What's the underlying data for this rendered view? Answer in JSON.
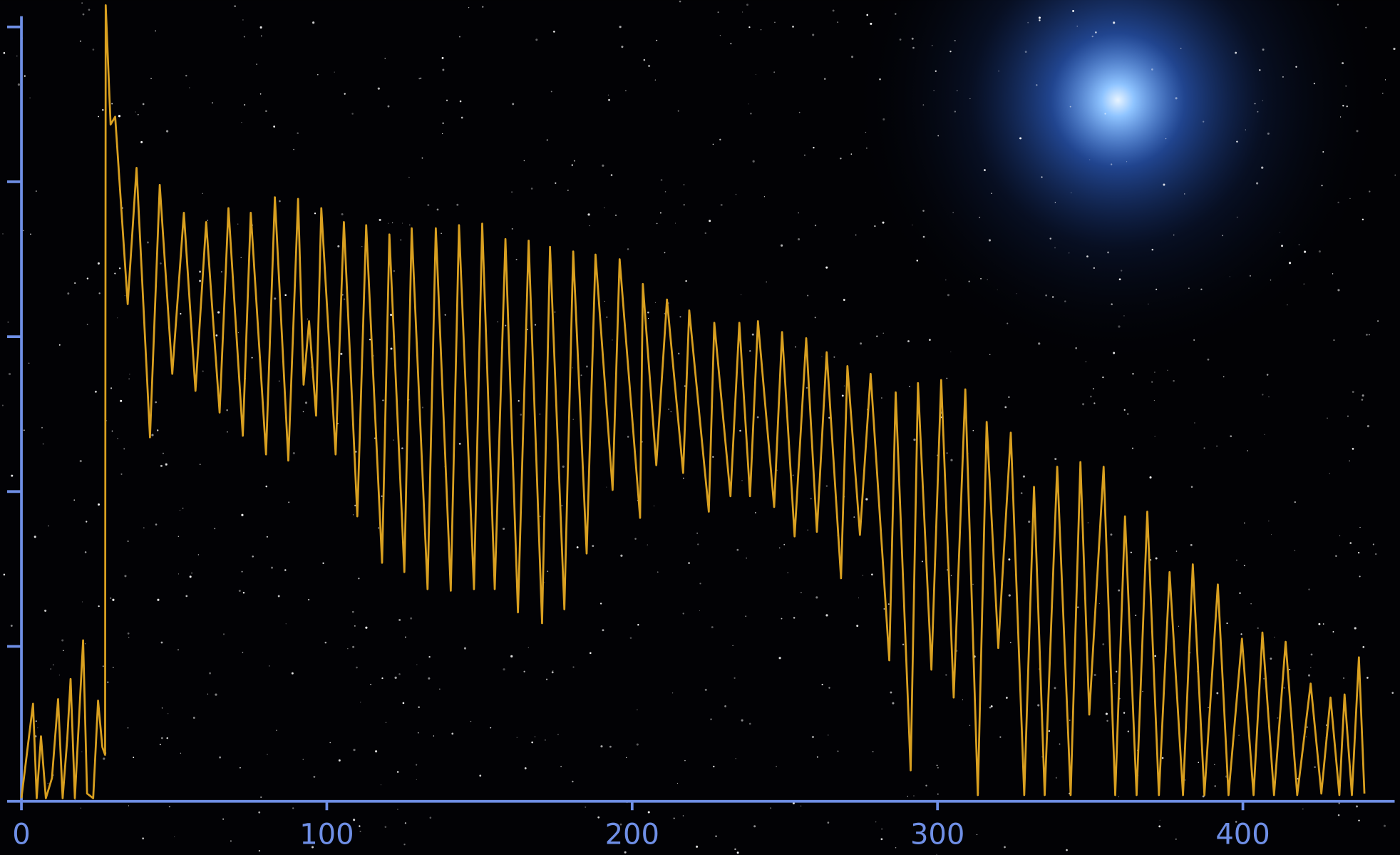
{
  "chart_data": {
    "type": "line",
    "color": "#d9a020",
    "x": [
      0,
      3.8,
      5,
      6.4,
      8,
      10,
      12,
      13.5,
      15,
      16.1,
      17.5,
      20.2,
      21.5,
      23.5,
      25.1,
      26.5,
      27.4,
      27.6,
      29.2,
      30.7,
      34.8,
      37.7,
      42.1,
      45.3,
      49.4,
      53.2,
      57,
      60.5,
      64.9,
      67.8,
      72.5,
      75.1,
      80.1,
      83,
      87.4,
      90.6,
      92.4,
      94.2,
      96.5,
      98.2,
      102.9,
      105.6,
      110,
      112.9,
      118.1,
      120.5,
      125.4,
      127.8,
      133,
      135.7,
      140.6,
      143.3,
      148.2,
      150.9,
      155,
      158.5,
      162.6,
      166.1,
      170.5,
      173.1,
      177.8,
      180.7,
      185.1,
      188,
      193.6,
      195.9,
      202.6,
      203.5,
      207.9,
      211.4,
      216.7,
      218.7,
      225.1,
      226.9,
      232.2,
      235.1,
      238.6,
      241.2,
      246.5,
      249.1,
      253.2,
      257,
      260.5,
      263.7,
      268.4,
      270.5,
      274.6,
      278.1,
      284.2,
      286.3,
      291.2,
      293.6,
      298,
      301.2,
      305.3,
      309.1,
      313.2,
      316.1,
      319.9,
      324,
      328.4,
      331.6,
      335.1,
      339.2,
      343.6,
      346.8,
      349.7,
      354.4,
      358.2,
      361.4,
      365.2,
      368.7,
      372.5,
      376,
      380.4,
      383.6,
      387.4,
      391.8,
      395.3,
      399.7,
      403.5,
      406.4,
      410.2,
      414,
      417.8,
      422.2,
      425.7,
      428.7,
      431.6,
      433.3,
      435.7,
      438,
      439.8
    ],
    "values": [
      0.02,
      0.63,
      0.02,
      0.42,
      0.02,
      0.15,
      0.66,
      0.02,
      0.4,
      0.79,
      0.02,
      1.04,
      0.05,
      0.02,
      0.65,
      0.35,
      0.3,
      5.14,
      4.37,
      4.42,
      3.21,
      4.09,
      2.35,
      3.98,
      2.76,
      3.8,
      2.65,
      3.74,
      2.51,
      3.83,
      2.36,
      3.8,
      2.24,
      3.9,
      2.2,
      3.89,
      2.69,
      3.1,
      2.49,
      3.83,
      2.24,
      3.74,
      1.84,
      3.72,
      1.54,
      3.66,
      1.48,
      3.7,
      1.37,
      3.7,
      1.36,
      3.72,
      1.37,
      3.73,
      1.37,
      3.63,
      1.22,
      3.62,
      1.15,
      3.58,
      1.24,
      3.55,
      1.6,
      3.53,
      2.01,
      3.5,
      1.83,
      3.34,
      2.17,
      3.24,
      2.12,
      3.17,
      1.87,
      3.09,
      1.97,
      3.09,
      1.97,
      3.1,
      1.9,
      3.03,
      1.71,
      2.99,
      1.74,
      2.9,
      1.44,
      2.81,
      1.72,
      2.76,
      0.91,
      2.64,
      0.2,
      2.7,
      0.85,
      2.72,
      0.67,
      2.66,
      0.04,
      2.45,
      0.99,
      2.38,
      0.04,
      2.03,
      0.04,
      2.16,
      0.04,
      2.19,
      0.56,
      2.16,
      0.04,
      1.84,
      0.04,
      1.87,
      0.04,
      1.48,
      0.04,
      1.53,
      0.04,
      1.4,
      0.04,
      1.05,
      0.04,
      1.09,
      0.04,
      1.03,
      0.04,
      0.76,
      0.05,
      0.67,
      0.04,
      0.69,
      0.04,
      0.93,
      0.05
    ],
    "xlim": [
      0,
      449
    ],
    "xticks": [
      0,
      100,
      200,
      300,
      400
    ],
    "ylim": [
      0,
      5.15
    ],
    "yticks": [
      0,
      1,
      2,
      3,
      4,
      5
    ]
  }
}
